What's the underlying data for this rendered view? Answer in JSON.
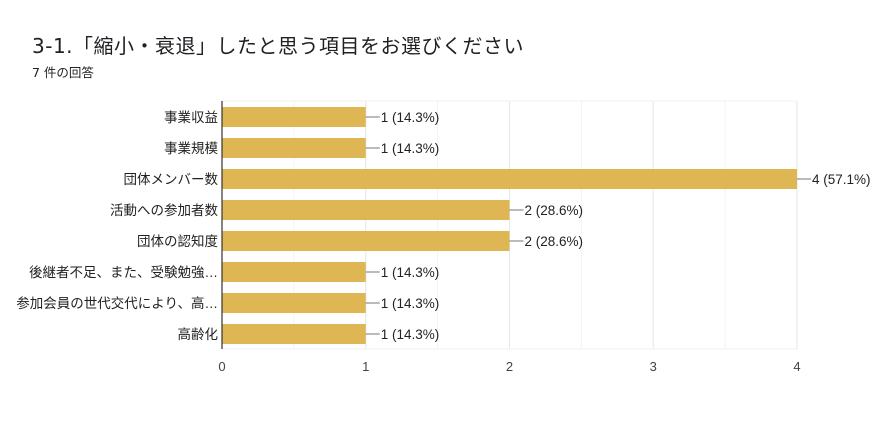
{
  "header": {
    "title": "3-1.「縮小・衰退」したと思う項目をお選びください",
    "response_count": "7 件の回答"
  },
  "chart_data": {
    "type": "bar",
    "orientation": "horizontal",
    "categories": [
      "事業収益",
      "事業規模",
      "団体メンバー数",
      "活動への参加者数",
      "団体の認知度",
      "後継者不足、また、受験勉強…",
      "参加会員の世代交代により、高…",
      "高齢化"
    ],
    "values": [
      1,
      1,
      4,
      2,
      2,
      1,
      1,
      1
    ],
    "data_labels": [
      "1 (14.3%)",
      "1 (14.3%)",
      "4 (57.1%)",
      "2 (28.6%)",
      "2 (28.6%)",
      "1 (14.3%)",
      "1 (14.3%)",
      "1 (14.3%)"
    ],
    "xlim": [
      0,
      4
    ],
    "xticks": [
      "0",
      "1",
      "2",
      "3",
      "4"
    ],
    "grid": true,
    "bar_color": "#dfb654"
  }
}
